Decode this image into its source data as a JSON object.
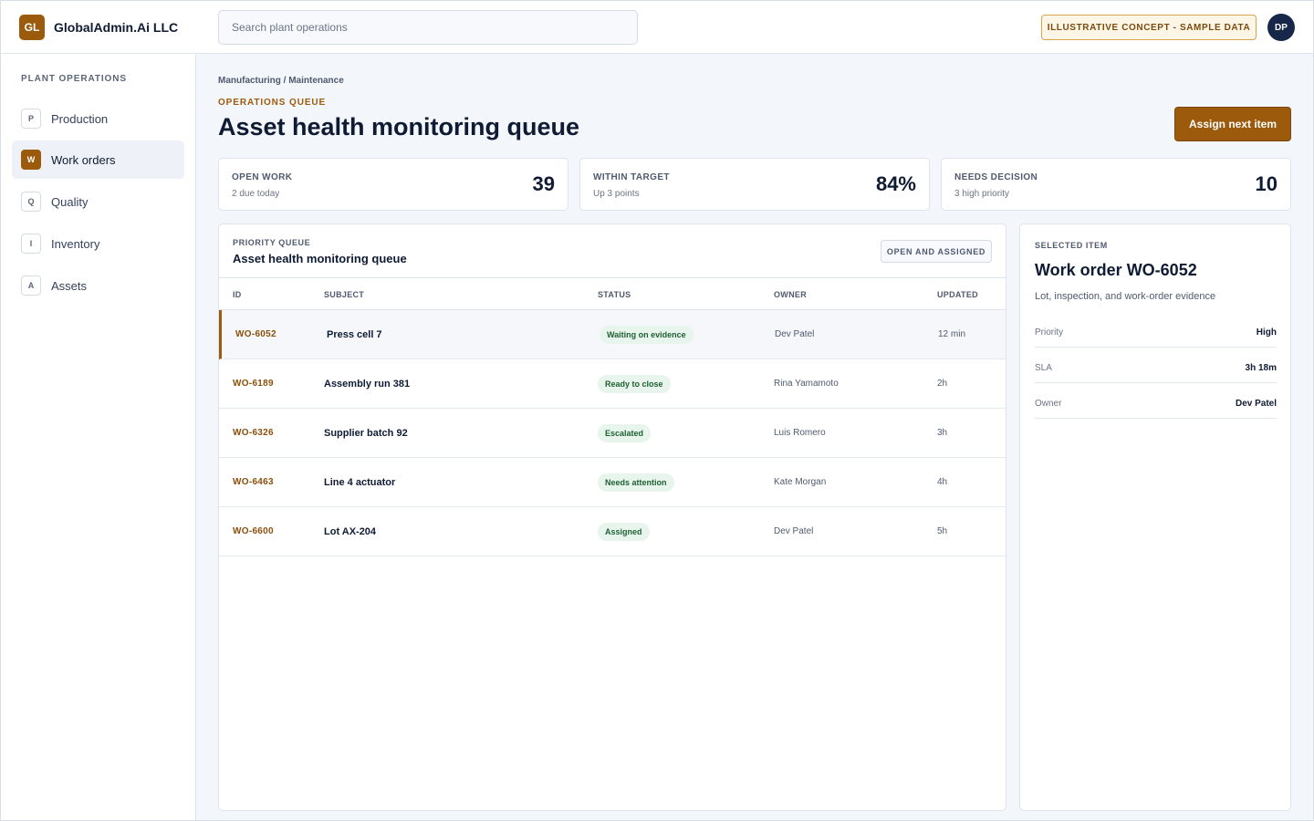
{
  "brand": {
    "logo": "GL",
    "name": "GlobalAdmin.Ai LLC"
  },
  "search": {
    "placeholder": "Search plant operations"
  },
  "concept_badge": "ILLUSTRATIVE CONCEPT - SAMPLE DATA",
  "user": {
    "initials": "DP"
  },
  "sidebar": {
    "heading": "PLANT OPERATIONS",
    "items": [
      {
        "letter": "P",
        "label": "Production",
        "active": false
      },
      {
        "letter": "W",
        "label": "Work orders",
        "active": true
      },
      {
        "letter": "Q",
        "label": "Quality",
        "active": false
      },
      {
        "letter": "I",
        "label": "Inventory",
        "active": false
      },
      {
        "letter": "A",
        "label": "Assets",
        "active": false
      }
    ]
  },
  "header": {
    "breadcrumb": "Manufacturing / Maintenance",
    "eyebrow": "OPERATIONS QUEUE",
    "title": "Asset health monitoring queue",
    "primary_action": "Assign next item"
  },
  "kpis": [
    {
      "label": "OPEN WORK",
      "sub": "2 due today",
      "value": "39"
    },
    {
      "label": "WITHIN TARGET",
      "sub": "Up 3 points",
      "value": "84%"
    },
    {
      "label": "NEEDS DECISION",
      "sub": "3 high priority",
      "value": "10"
    }
  ],
  "queue": {
    "eyebrow": "PRIORITY QUEUE",
    "title": "Asset health monitoring queue",
    "filter": "OPEN AND ASSIGNED",
    "columns": {
      "id": "ID",
      "subject": "SUBJECT",
      "status": "STATUS",
      "owner": "OWNER",
      "updated": "UPDATED"
    },
    "rows": [
      {
        "id": "WO-6052",
        "subject": "Press cell 7",
        "status": "Waiting on evidence",
        "owner": "Dev Patel",
        "updated": "12 min",
        "selected": true
      },
      {
        "id": "WO-6189",
        "subject": "Assembly run 381",
        "status": "Ready to close",
        "owner": "Rina Yamamoto",
        "updated": "2h",
        "selected": false
      },
      {
        "id": "WO-6326",
        "subject": "Supplier batch 92",
        "status": "Escalated",
        "owner": "Luis Romero",
        "updated": "3h",
        "selected": false
      },
      {
        "id": "WO-6463",
        "subject": "Line 4 actuator",
        "status": "Needs attention",
        "owner": "Kate Morgan",
        "updated": "4h",
        "selected": false
      },
      {
        "id": "WO-6600",
        "subject": "Lot AX-204",
        "status": "Assigned",
        "owner": "Dev Patel",
        "updated": "5h",
        "selected": false
      }
    ]
  },
  "detail": {
    "eyebrow": "SELECTED ITEM",
    "title": "Work order WO-6052",
    "description": "Lot, inspection, and work-order evidence",
    "fields": [
      {
        "key": "Priority",
        "value": "High"
      },
      {
        "key": "SLA",
        "value": "3h 18m"
      },
      {
        "key": "Owner",
        "value": "Dev Patel"
      }
    ]
  },
  "colors": {
    "accent": "#9c5a0c",
    "navy": "#17274a",
    "status_bg": "#e8f5ec",
    "status_text": "#1f5f33"
  }
}
